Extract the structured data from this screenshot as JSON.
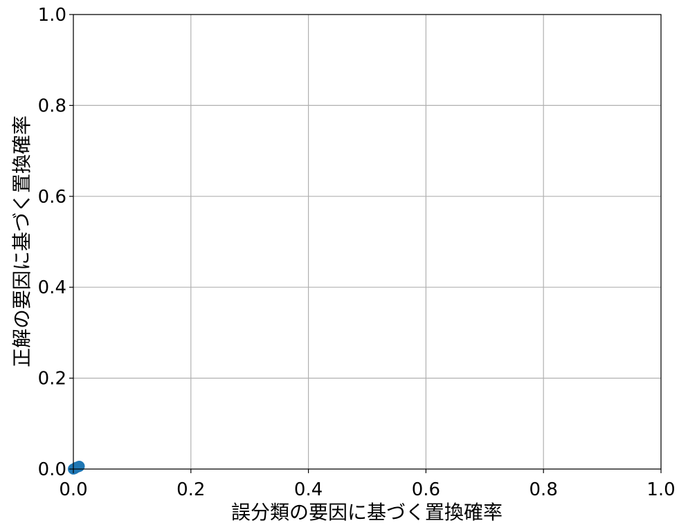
{
  "chart_data": {
    "type": "scatter",
    "title": "",
    "xlabel": "誤分類の要因に基づく置換確率",
    "ylabel": "正解の要因に基づく置換確率",
    "xlim": [
      0.0,
      1.0
    ],
    "ylim": [
      0.0,
      1.0
    ],
    "xticks": [
      "0.0",
      "0.2",
      "0.4",
      "0.6",
      "0.8",
      "1.0"
    ],
    "yticks": [
      "0.0",
      "0.2",
      "0.4",
      "0.6",
      "0.8",
      "1.0"
    ],
    "grid": true,
    "legend": "none",
    "series": [
      {
        "color": "#1f77b4",
        "points": [
          {
            "x": 0.0,
            "y": 0.0
          },
          {
            "x": 0.002,
            "y": 0.001
          },
          {
            "x": 0.004,
            "y": 0.003
          },
          {
            "x": 0.006,
            "y": 0.004
          },
          {
            "x": 0.008,
            "y": 0.005
          },
          {
            "x": 0.01,
            "y": 0.006
          }
        ]
      }
    ]
  }
}
